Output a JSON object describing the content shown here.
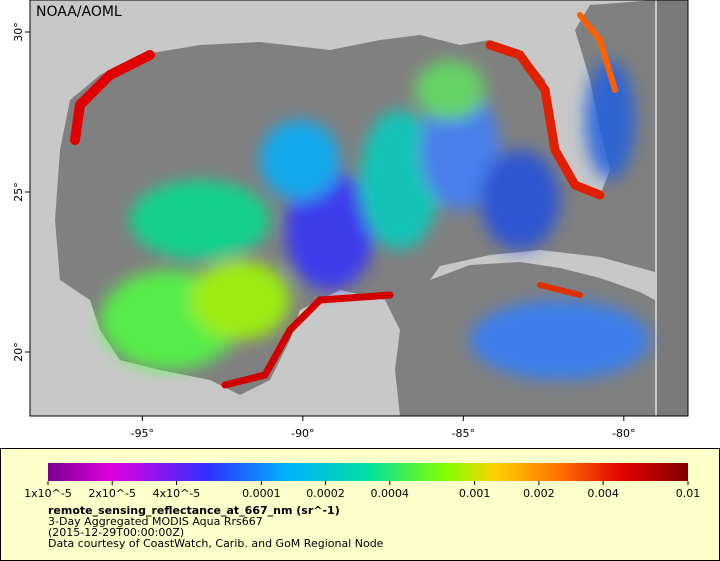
{
  "map": {
    "watermark": "NOAA/AOML",
    "lon_range": [
      -98.5,
      -78
    ],
    "lat_range": [
      18,
      31
    ],
    "lon_ticks": [
      {
        "value": -95,
        "label": "-95°"
      },
      {
        "value": -90,
        "label": "-90°"
      },
      {
        "value": -85,
        "label": "-85°"
      },
      {
        "value": -80,
        "label": "-80°"
      }
    ],
    "lat_ticks": [
      {
        "value": 30,
        "label": "30°"
      },
      {
        "value": 25,
        "label": "25°"
      },
      {
        "value": 20,
        "label": "20°"
      }
    ]
  },
  "colorbar": {
    "scale": "log",
    "range": [
      1e-05,
      0.01
    ],
    "ticks": [
      {
        "value": 1e-05,
        "label": "1x10^-5"
      },
      {
        "value": 2e-05,
        "label": "2x10^-5"
      },
      {
        "value": 4e-05,
        "label": "4x10^-5"
      },
      0.0001,
      0.0002,
      0.0004,
      0.001,
      0.002,
      0.004,
      0.01
    ]
  },
  "caption": {
    "variable": "remote_sensing_reflectance_at_667_nm (sr^-1)",
    "lines": [
      "3-Day Aggregated MODIS Aqua Rrs667",
      "(2015-12-29T00:00:00Z)",
      "Data courtesy of CoastWatch, Carib. and GoM Regional Node"
    ]
  }
}
